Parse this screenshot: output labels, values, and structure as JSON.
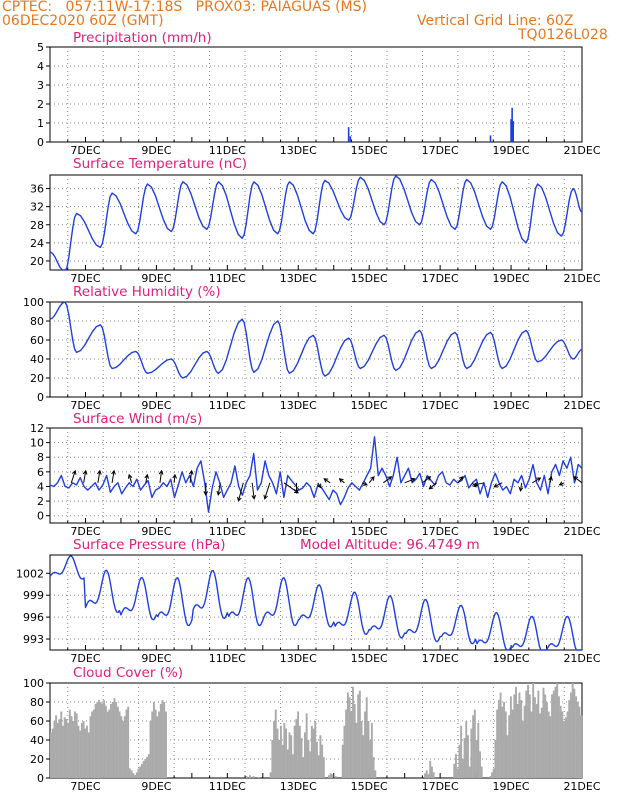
{
  "header": {
    "line1": "CPTEC:   057:11W-17:18S   PROX03: PAIAGUAS (MS)",
    "line2_left": "06DEC2020 60Z (GMT)",
    "line2_right": "Vertical Grid Line: 60Z",
    "line3_right": "TQ0126L028"
  },
  "colors": {
    "header": "#e8781e",
    "title": "#e0207a",
    "line": "#1f3fe0",
    "cloud": "#aaaaaa",
    "arrow": "#000000"
  },
  "date_labels": [
    "7DEC",
    "9DEC",
    "11DEC",
    "13DEC",
    "15DEC",
    "17DEC",
    "19DEC",
    "21DEC"
  ],
  "chart_data": [
    {
      "type": "bar",
      "title": "Precipitation (mm/h)",
      "ylim": [
        0,
        5
      ],
      "yticks": [
        "0",
        "1",
        "2",
        "3",
        "4",
        "5"
      ],
      "x_day_range": [
        6.0,
        21.0
      ],
      "bars": [
        [
          14.42,
          0.78
        ],
        [
          14.47,
          0.3
        ],
        [
          18.42,
          0.35
        ],
        [
          19.0,
          1.2
        ],
        [
          19.03,
          1.8
        ],
        [
          19.06,
          1.1
        ]
      ]
    },
    {
      "type": "line",
      "title": "Surface Temperature (nC)",
      "ylim": [
        18,
        39
      ],
      "yticks": [
        "20",
        "24",
        "28",
        "32",
        "36"
      ],
      "x_day_range": [
        6.0,
        21.0
      ],
      "daily_max": [
        30.5,
        35,
        37,
        37.5,
        37.5,
        37.5,
        37.5,
        37.8,
        38.5,
        38.8,
        38,
        38,
        37.5,
        37,
        36
      ],
      "daily_min": [
        17.5,
        23,
        26,
        26.5,
        27,
        25,
        26,
        26,
        29,
        28,
        28,
        27,
        27,
        24,
        25.5
      ],
      "start_value": 22,
      "peak_fraction": 0.75,
      "min_fraction": 0.42
    },
    {
      "type": "line",
      "title": "Relative Humidity (%)",
      "ylim": [
        0,
        100
      ],
      "yticks": [
        "0",
        "20",
        "40",
        "60",
        "80",
        "100"
      ],
      "x_day_range": [
        6.0,
        21.0
      ],
      "daily_max": [
        100,
        76,
        48,
        40,
        48,
        82,
        80,
        65,
        62,
        65,
        70,
        68,
        68,
        70,
        60
      ],
      "daily_min": [
        47,
        30,
        25,
        20,
        25,
        26,
        25,
        22,
        30,
        28,
        30,
        30,
        30,
        37,
        40
      ],
      "start_value": 82,
      "peak_fraction": 0.42,
      "min_fraction": 0.75
    },
    {
      "type": "line",
      "title": "Surface Wind (m/s)",
      "ylim": [
        -1,
        12
      ],
      "yticks": [
        "0",
        "2",
        "4",
        "6",
        "8",
        "10",
        "12"
      ],
      "x_day_range": [
        6.0,
        21.0
      ],
      "values": [
        4.2,
        4.0,
        4.5,
        5.5,
        4.0,
        3.8,
        4.5,
        4.2,
        5.2,
        4.0,
        3.5,
        4.0,
        4.5,
        3.5,
        4.2,
        5.5,
        3.2,
        4.0,
        4.5,
        3.0,
        3.8,
        4.5,
        4.0,
        5.0,
        3.5,
        4.2,
        4.8,
        2.5,
        3.5,
        3.8,
        4.5,
        4.0,
        5.0,
        2.5,
        4.2,
        6.0,
        4.5,
        5.5,
        4.0,
        6.5,
        7.5,
        4.5,
        0.5,
        3.8,
        6.0,
        4.5,
        2.5,
        3.5,
        4.5,
        6.8,
        4.0,
        2.8,
        4.5,
        5.5,
        8.5,
        3.5,
        4.5,
        7.5,
        5.5,
        4.5,
        3.0,
        6.0,
        2.5,
        5.5,
        4.8,
        4.2,
        3.5,
        3.8,
        4.5,
        4.0,
        2.5,
        4.2,
        3.8,
        3.0,
        2.2,
        3.5,
        3.0,
        1.5,
        2.5,
        3.8,
        4.5,
        4.0,
        3.5,
        4.5,
        5.5,
        6.5,
        10.8,
        5.5,
        6.5,
        5.5,
        4.0,
        5.5,
        8.0,
        4.5,
        5.5,
        6.5,
        4.5,
        5.0,
        5.8,
        4.0,
        5.5,
        4.8,
        4.2,
        5.5,
        6.0,
        4.5,
        4.2,
        5.0,
        4.5,
        4.8,
        5.5,
        3.8,
        4.5,
        5.0,
        3.0,
        4.5,
        2.5,
        4.5,
        5.8,
        4.5,
        3.5,
        4.0,
        3.0,
        5.0,
        4.5,
        5.5,
        3.8,
        5.0,
        7.0,
        4.5,
        3.5,
        5.5,
        3.0,
        6.0,
        7.0,
        5.5,
        7.5,
        6.5,
        8.0,
        4.5,
        7.0,
        6.5
      ]
    },
    {
      "type": "line",
      "title": "Surface Pressure (hPa)",
      "annotation": "Model Altitude: 96.4749 m",
      "ylim": [
        991.5,
        1004.5
      ],
      "yticks": [
        "993",
        "996",
        "999",
        "1002"
      ],
      "x_day_range": [
        6.0,
        21.0
      ],
      "daily_base": [
        1002.5,
        999,
        998,
        997.5,
        998.5,
        997.5,
        997.5,
        997,
        996,
        995.5,
        995,
        994.5,
        993.5,
        993,
        993
      ],
      "daily_amplitude": [
        1.2,
        2.2,
        2.2,
        2.5,
        2.5,
        2.5,
        2.5,
        2.2,
        2.2,
        2.2,
        2.2,
        2.0,
        2.0,
        2.0,
        2.0
      ],
      "peak_fraction": 0.55
    },
    {
      "type": "bar",
      "title": "Cloud Cover (%)",
      "ylim": [
        0,
        100
      ],
      "yticks": [
        "0",
        "20",
        "40",
        "60",
        "80",
        "100"
      ],
      "x_day_range": [
        6.0,
        21.0
      ],
      "values": [
        48,
        52,
        60,
        66,
        58,
        62,
        70,
        55,
        64,
        62,
        58,
        72,
        65,
        60,
        70,
        68,
        55,
        50,
        58,
        60,
        52,
        55,
        48,
        65,
        70,
        72,
        78,
        80,
        82,
        80,
        78,
        82,
        76,
        70,
        72,
        78,
        80,
        84,
        80,
        75,
        70,
        65,
        60,
        65,
        72,
        75,
        10,
        8,
        5,
        3,
        6,
        10,
        12,
        15,
        18,
        20,
        22,
        25,
        60,
        70,
        80,
        72,
        65,
        70,
        78,
        82,
        80,
        70,
        0,
        0,
        0,
        0,
        0,
        0,
        0,
        0,
        0,
        0,
        0,
        0,
        0,
        0,
        0,
        0,
        0,
        0,
        0,
        0,
        0,
        0,
        0,
        0,
        0,
        0,
        0,
        0,
        0,
        0,
        0,
        0,
        0,
        0,
        0,
        0,
        0,
        0,
        0,
        0,
        0,
        0,
        0,
        0,
        0,
        0,
        2,
        0,
        3,
        0,
        2,
        0,
        0,
        1,
        0,
        0,
        0,
        0,
        0,
        0,
        6,
        40,
        60,
        72,
        52,
        40,
        55,
        35,
        58,
        52,
        30,
        48,
        45,
        25,
        55,
        62,
        70,
        55,
        42,
        22,
        48,
        68,
        40,
        28,
        55,
        52,
        60,
        38,
        24,
        45,
        35,
        22,
        0,
        0,
        3,
        5,
        4,
        0,
        2,
        0,
        0,
        0,
        35,
        55,
        72,
        90,
        85,
        70,
        96,
        78,
        58,
        88,
        92,
        60,
        45,
        70,
        85,
        60,
        40,
        58,
        22,
        8,
        0,
        0,
        0,
        0,
        0,
        0,
        0,
        0,
        0,
        0,
        0,
        0,
        0,
        0,
        0,
        0,
        0,
        0,
        0,
        0,
        0,
        0,
        0,
        0,
        0,
        0,
        0,
        0,
        5,
        8,
        4,
        18,
        12,
        6,
        0,
        0,
        0,
        0,
        0,
        0,
        0,
        0,
        0,
        0,
        0,
        15,
        25,
        10,
        35,
        55,
        20,
        42,
        60,
        45,
        12,
        52,
        66,
        72,
        40,
        58,
        28,
        12,
        0,
        0,
        0,
        0,
        2,
        6,
        10,
        40,
        72,
        82,
        90,
        75,
        80,
        70,
        45,
        66,
        86,
        72,
        88,
        96,
        78,
        90,
        82,
        60,
        76,
        92,
        98,
        88,
        70,
        100,
        85,
        78,
        92,
        68,
        74,
        95,
        88,
        80,
        70,
        65,
        88,
        92,
        96,
        100,
        86,
        76,
        70,
        60,
        64,
        70,
        82,
        90,
        100,
        94,
        86,
        80,
        75,
        66
      ]
    }
  ],
  "wind_arrows": [
    [
      6.6,
      1,
      3
    ],
    [
      6.95,
      0.5,
      3
    ],
    [
      7.35,
      0.5,
      3
    ],
    [
      7.75,
      0.5,
      3
    ],
    [
      8.3,
      -0.6,
      2
    ],
    [
      8.7,
      0.4,
      2
    ],
    [
      9.1,
      0.4,
      3
    ],
    [
      9.5,
      0.2,
      2
    ],
    [
      9.95,
      0.4,
      3
    ],
    [
      10.4,
      -0.1,
      -3
    ],
    [
      10.8,
      -0.5,
      -3
    ],
    [
      11.45,
      -1.2,
      -4.5
    ],
    [
      11.7,
      0.5,
      -4
    ],
    [
      12.2,
      -1.3,
      -4
    ],
    [
      12.6,
      3.5,
      -2.5
    ],
    [
      12.95,
      0,
      -2.5
    ],
    [
      13.55,
      0.8,
      -1.2
    ],
    [
      13.9,
      -1.5,
      1
    ],
    [
      14.3,
      -1.2,
      1
    ],
    [
      14.8,
      1.2,
      -0.5
    ],
    [
      15.0,
      1.2,
      1.5
    ],
    [
      15.4,
      2,
      1.5
    ],
    [
      16.0,
      2.5,
      1
    ],
    [
      16.5,
      2,
      1.5
    ],
    [
      16.9,
      -1.8,
      -1.5
    ],
    [
      17.5,
      1.2,
      1.5
    ],
    [
      17.9,
      1,
      -1
    ],
    [
      18.25,
      -2.5,
      -0.5
    ],
    [
      18.75,
      -2,
      -1
    ],
    [
      19.3,
      -0.3,
      -2
    ],
    [
      19.6,
      2,
      1.2
    ],
    [
      20.1,
      0.3,
      1.5
    ],
    [
      20.5,
      -1.2,
      -0.5
    ],
    [
      21.0,
      -2,
      1.5
    ]
  ]
}
